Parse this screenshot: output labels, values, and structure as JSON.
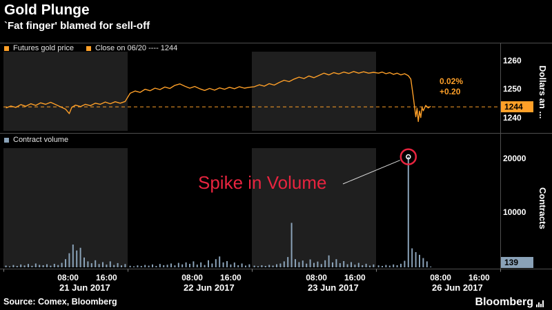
{
  "header": {
    "title": "Gold Plunge",
    "subtitle": "`Fat finger' blamed for sell-off"
  },
  "annotations": {
    "pct": "0.02%",
    "abs": "+0.20",
    "spike": "Spike in Volume",
    "close_badge": "1244",
    "volume_badge": "139"
  },
  "footer": {
    "source": "Source: Comex, Bloomberg",
    "brand": "Bloomberg"
  },
  "colors": {
    "orange": "#ffa028",
    "volume": "#8aa2b8",
    "red": "#e8243f",
    "band": "#1f1f1f",
    "grid": "#4f4f4f",
    "text": "#ffffff"
  },
  "chart_data": {
    "type": "multi-panel",
    "x": {
      "dates": [
        "21 Jun 2017",
        "22 Jun 2017",
        "23 Jun 2017",
        "26 Jun 2017"
      ],
      "time_ticks": [
        "08:00",
        "16:00"
      ],
      "time_fractions": [
        0.52,
        0.83
      ],
      "date_fraction": 0.655,
      "shaded_days": [
        0,
        2
      ],
      "unit": "day index 0-3, fraction = position within session"
    },
    "panels": [
      {
        "type": "line",
        "name": "Futures gold price",
        "close_label": "Close on 06/20 ---- 1244",
        "ylabel": "Dollars an ...",
        "ylim": [
          1235.5,
          1263.5
        ],
        "yticks": [
          1240,
          1250,
          1260
        ],
        "close_reference": 1244,
        "last_price": 1244.2,
        "points": [
          [
            0.02,
            1243.6
          ],
          [
            0.06,
            1244.3
          ],
          [
            0.1,
            1243.8
          ],
          [
            0.14,
            1244.8
          ],
          [
            0.18,
            1244.2
          ],
          [
            0.22,
            1245.1
          ],
          [
            0.26,
            1244.5
          ],
          [
            0.3,
            1245.4
          ],
          [
            0.34,
            1244.9
          ],
          [
            0.38,
            1245.6
          ],
          [
            0.42,
            1244.8
          ],
          [
            0.46,
            1244.0
          ],
          [
            0.5,
            1243.2
          ],
          [
            0.53,
            1241.6
          ],
          [
            0.55,
            1243.8
          ],
          [
            0.58,
            1244.6
          ],
          [
            0.62,
            1244.1
          ],
          [
            0.66,
            1244.9
          ],
          [
            0.7,
            1244.4
          ],
          [
            0.74,
            1245.3
          ],
          [
            0.78,
            1244.9
          ],
          [
            0.82,
            1245.7
          ],
          [
            0.86,
            1245.1
          ],
          [
            0.9,
            1245.8
          ],
          [
            0.94,
            1245.3
          ],
          [
            0.98,
            1245.9
          ],
          [
            1.02,
            1248.8
          ],
          [
            1.06,
            1249.6
          ],
          [
            1.1,
            1249.1
          ],
          [
            1.14,
            1250.2
          ],
          [
            1.18,
            1249.7
          ],
          [
            1.22,
            1250.6
          ],
          [
            1.26,
            1250.1
          ],
          [
            1.3,
            1251.0
          ],
          [
            1.34,
            1250.5
          ],
          [
            1.38,
            1251.6
          ],
          [
            1.42,
            1252.1
          ],
          [
            1.46,
            1251.3
          ],
          [
            1.5,
            1250.6
          ],
          [
            1.54,
            1251.2
          ],
          [
            1.58,
            1250.4
          ],
          [
            1.62,
            1249.8
          ],
          [
            1.66,
            1250.5
          ],
          [
            1.7,
            1249.9
          ],
          [
            1.74,
            1250.7
          ],
          [
            1.78,
            1250.2
          ],
          [
            1.82,
            1250.9
          ],
          [
            1.86,
            1250.4
          ],
          [
            1.9,
            1251.1
          ],
          [
            1.94,
            1250.6
          ],
          [
            1.98,
            1250.9
          ],
          [
            2.02,
            1251.1
          ],
          [
            2.06,
            1251.8
          ],
          [
            2.1,
            1251.3
          ],
          [
            2.14,
            1252.2
          ],
          [
            2.18,
            1251.7
          ],
          [
            2.22,
            1252.6
          ],
          [
            2.26,
            1253.4
          ],
          [
            2.3,
            1252.9
          ],
          [
            2.34,
            1253.8
          ],
          [
            2.38,
            1254.5
          ],
          [
            2.42,
            1254.0
          ],
          [
            2.46,
            1254.9
          ],
          [
            2.5,
            1254.3
          ],
          [
            2.54,
            1255.1
          ],
          [
            2.58,
            1255.9
          ],
          [
            2.62,
            1255.3
          ],
          [
            2.66,
            1256.1
          ],
          [
            2.7,
            1255.6
          ],
          [
            2.74,
            1256.3
          ],
          [
            2.78,
            1255.8
          ],
          [
            2.82,
            1256.5
          ],
          [
            2.86,
            1255.9
          ],
          [
            2.9,
            1256.4
          ],
          [
            2.94,
            1255.9
          ],
          [
            2.98,
            1256.2
          ],
          [
            3.02,
            1255.9
          ],
          [
            3.05,
            1256.3
          ],
          [
            3.08,
            1255.7
          ],
          [
            3.11,
            1256.1
          ],
          [
            3.14,
            1255.5
          ],
          [
            3.17,
            1255.9
          ],
          [
            3.2,
            1255.3
          ],
          [
            3.23,
            1255.7
          ],
          [
            3.26,
            1255.0
          ],
          [
            3.28,
            1253.8
          ],
          [
            3.3,
            1247.5
          ],
          [
            3.31,
            1244.0
          ],
          [
            3.32,
            1240.5
          ],
          [
            3.33,
            1243.5
          ],
          [
            3.34,
            1238.8
          ],
          [
            3.35,
            1242.5
          ],
          [
            3.36,
            1240.2
          ],
          [
            3.37,
            1243.8
          ],
          [
            3.38,
            1242.6
          ],
          [
            3.4,
            1244.5
          ],
          [
            3.42,
            1243.6
          ],
          [
            3.44,
            1244.2
          ]
        ]
      },
      {
        "type": "bar",
        "name": "Contract volume",
        "ylabel": "Contracts",
        "ylim": [
          0,
          22000
        ],
        "yticks": [
          10000,
          20000
        ],
        "bar_start": 0.02,
        "bar_step": 0.03,
        "last_value": 139,
        "spike_value": 20400,
        "days_values": [
          [
            320,
            180,
            420,
            260,
            520,
            340,
            610,
            280,
            700,
            450,
            380,
            560,
            300,
            640,
            420,
            820,
            1500,
            2600,
            4200,
            3100,
            3600,
            1800,
            1100,
            750,
            1300,
            600,
            950,
            500,
            1100,
            420,
            780,
            350,
            600
          ],
          [
            280,
            180,
            350,
            240,
            430,
            300,
            520,
            260,
            610,
            380,
            470,
            700,
            360,
            820,
            540,
            900,
            640,
            1100,
            500,
            900,
            420,
            1300,
            700,
            1500,
            2000,
            900,
            1150,
            520,
            880,
            400,
            700,
            320,
            550
          ],
          [
            300,
            200,
            380,
            260,
            450,
            320,
            560,
            700,
            1100,
            1900,
            8200,
            1500,
            950,
            1250,
            680,
            1450,
            820,
            1050,
            600,
            1300,
            2200,
            900,
            1500,
            760,
            1150,
            560,
            950,
            480,
            820,
            380,
            650,
            300,
            520
          ],
          [
            350,
            250,
            430,
            300,
            520,
            380,
            650,
            1200,
            20400,
            3500,
            2800,
            2300,
            1700,
            1100,
            139
          ]
        ]
      }
    ]
  }
}
